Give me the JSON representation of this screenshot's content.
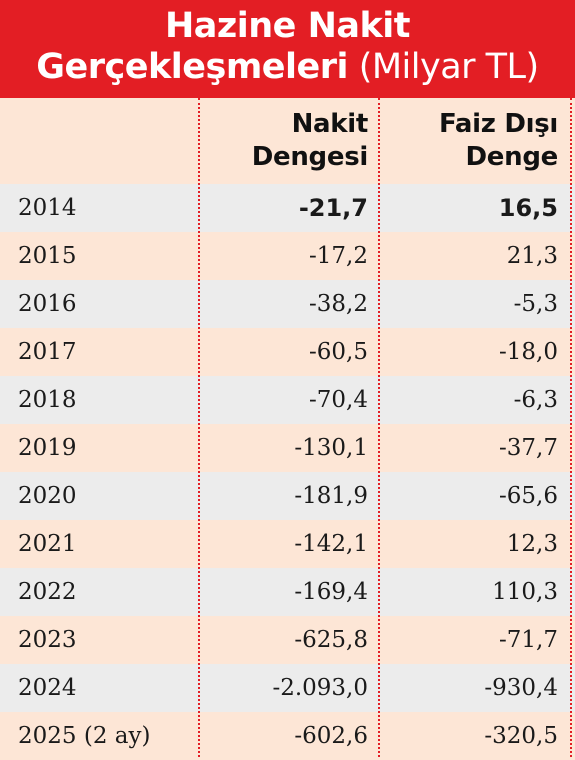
{
  "title": {
    "line1": "Hazine Nakit",
    "line2_bold": "Gerçekleşmeleri",
    "line2_light": "(Milyar TL)"
  },
  "columns": {
    "col1_line1": "Nakit",
    "col1_line2": "Dengesi",
    "col2_line1": "Faiz Dışı",
    "col2_line2": "Denge"
  },
  "rows": [
    {
      "year": "2014",
      "nakit": "-21,7",
      "faiz": "16,5"
    },
    {
      "year": "2015",
      "nakit": "-17,2",
      "faiz": "21,3"
    },
    {
      "year": "2016",
      "nakit": "-38,2",
      "faiz": "-5,3"
    },
    {
      "year": "2017",
      "nakit": "-60,5",
      "faiz": "-18,0"
    },
    {
      "year": "2018",
      "nakit": "-70,4",
      "faiz": "-6,3"
    },
    {
      "year": "2019",
      "nakit": "-130,1",
      "faiz": "-37,7"
    },
    {
      "year": "2020",
      "nakit": "-181,9",
      "faiz": "-65,6"
    },
    {
      "year": "2021",
      "nakit": "-142,1",
      "faiz": "12,3"
    },
    {
      "year": "2022",
      "nakit": "-169,4",
      "faiz": "110,3"
    },
    {
      "year": "2023",
      "nakit": "-625,8",
      "faiz": "-71,7"
    },
    {
      "year": "2024",
      "nakit": "-2.093,0",
      "faiz": "-930,4"
    },
    {
      "year": "2025 (2 ay)",
      "nakit": "-602,6",
      "faiz": "-320,5"
    }
  ],
  "colors": {
    "accent": "#e31e24",
    "row_grey": "#ececec",
    "row_peach": "#fde6d6"
  }
}
